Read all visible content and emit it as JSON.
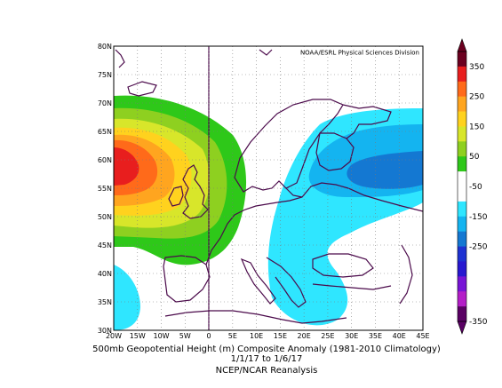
{
  "credit": "NOAA/ESRL Physical Sciences Division",
  "caption": {
    "line1": "500mb Geopotential Height (m) Composite Anomaly (1981-2010 Climatology)",
    "line2": "1/1/17  to 1/6/17",
    "line3": "NCEP/NCAR Reanalysis"
  },
  "map": {
    "lon_range": [
      -20,
      45
    ],
    "lat_range": [
      30,
      80
    ],
    "lon_ticks": [
      "20W",
      "15W",
      "10W",
      "5W",
      "0",
      "5E",
      "10E",
      "15E",
      "20E",
      "25E",
      "30E",
      "35E",
      "40E",
      "45E"
    ],
    "lat_ticks": [
      "80N",
      "75N",
      "70N",
      "65N",
      "60N",
      "55N",
      "50N",
      "45N",
      "40N",
      "35N",
      "30N"
    ],
    "grid": true
  },
  "colorbar": {
    "labels": [
      "350",
      "250",
      "150",
      "50",
      "-50",
      "-150",
      "-250",
      "-350"
    ],
    "colors": [
      "#6b0020",
      "#e81e1e",
      "#ff6a1a",
      "#ffa51f",
      "#ffd21e",
      "#d8e62a",
      "#8ed020",
      "#2ec819",
      "#ffffff",
      "#ffffff",
      "#2fe6ff",
      "#14b4f0",
      "#1478d2",
      "#1e32d2",
      "#2818d0",
      "#7814d6",
      "#b41ec8",
      "#5a0064"
    ]
  }
}
